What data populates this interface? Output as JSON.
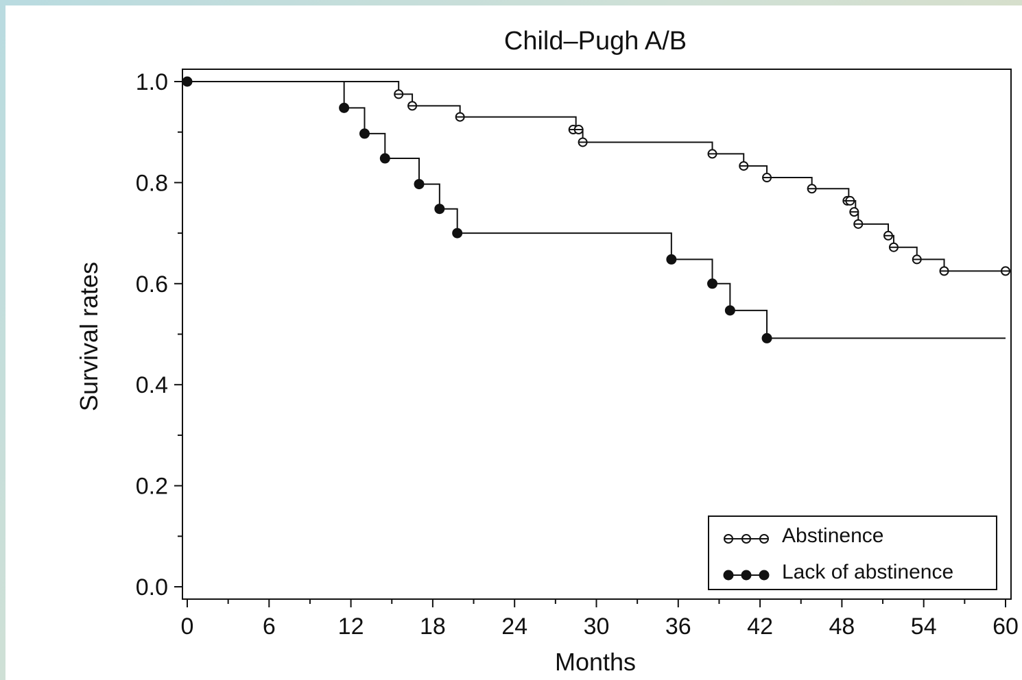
{
  "chart_data": {
    "type": "line",
    "title": "Child–Pugh A/B",
    "xlabel": "Months",
    "ylabel": "Survival rates",
    "xlim": [
      0,
      60
    ],
    "ylim": [
      0,
      1.0
    ],
    "xticks": [
      0,
      6,
      12,
      18,
      24,
      30,
      36,
      42,
      48,
      54,
      60
    ],
    "yticks": [
      0.0,
      0.2,
      0.4,
      0.6,
      0.8,
      1.0
    ],
    "x_tick_labels": [
      "0",
      "6",
      "12",
      "18",
      "24",
      "30",
      "36",
      "42",
      "48",
      "54",
      "60"
    ],
    "y_tick_labels": [
      "0.0",
      "0.2",
      "0.4",
      "0.6",
      "0.8",
      "1.0"
    ],
    "grid": false,
    "legend_position": "bottom-right",
    "series": [
      {
        "name": "Abstinence",
        "marker": "open-circle",
        "steps": [
          [
            0,
            1.0
          ],
          [
            15.5,
            0.975
          ],
          [
            16.5,
            0.952
          ],
          [
            20.0,
            0.93
          ],
          [
            28.5,
            0.905
          ],
          [
            29.0,
            0.88
          ],
          [
            38.5,
            0.857
          ],
          [
            40.8,
            0.833
          ],
          [
            42.5,
            0.81
          ],
          [
            45.8,
            0.788
          ],
          [
            48.5,
            0.764
          ],
          [
            49.0,
            0.742
          ],
          [
            49.2,
            0.718
          ],
          [
            51.4,
            0.695
          ],
          [
            51.8,
            0.672
          ],
          [
            53.5,
            0.648
          ],
          [
            55.5,
            0.625
          ],
          [
            60.0,
            0.625
          ]
        ],
        "censored": [
          [
            15.5,
            0.975
          ],
          [
            16.5,
            0.952
          ],
          [
            20.0,
            0.93
          ],
          [
            28.3,
            0.905
          ],
          [
            28.7,
            0.905
          ],
          [
            29.0,
            0.88
          ],
          [
            38.5,
            0.857
          ],
          [
            40.8,
            0.833
          ],
          [
            42.5,
            0.81
          ],
          [
            45.8,
            0.788
          ],
          [
            48.4,
            0.764
          ],
          [
            48.6,
            0.764
          ],
          [
            48.9,
            0.742
          ],
          [
            49.2,
            0.718
          ],
          [
            51.4,
            0.695
          ],
          [
            51.8,
            0.672
          ],
          [
            53.5,
            0.648
          ],
          [
            55.5,
            0.625
          ],
          [
            60.0,
            0.625
          ]
        ]
      },
      {
        "name": "Lack of abstinence",
        "marker": "filled-circle",
        "steps": [
          [
            0,
            1.0
          ],
          [
            11.5,
            0.948
          ],
          [
            13.0,
            0.897
          ],
          [
            14.5,
            0.848
          ],
          [
            17.0,
            0.797
          ],
          [
            18.5,
            0.748
          ],
          [
            19.8,
            0.7
          ],
          [
            35.5,
            0.648
          ],
          [
            38.5,
            0.6
          ],
          [
            39.8,
            0.547
          ],
          [
            42.5,
            0.492
          ],
          [
            60.0,
            0.492
          ]
        ],
        "censored": [
          [
            11.5,
            0.948
          ],
          [
            13.0,
            0.897
          ],
          [
            14.5,
            0.848
          ],
          [
            17.0,
            0.797
          ],
          [
            18.5,
            0.748
          ],
          [
            19.8,
            0.7
          ],
          [
            35.5,
            0.648
          ],
          [
            38.5,
            0.6
          ],
          [
            39.8,
            0.547
          ],
          [
            42.5,
            0.492
          ]
        ]
      }
    ],
    "start_point": [
      0,
      1.0
    ]
  }
}
